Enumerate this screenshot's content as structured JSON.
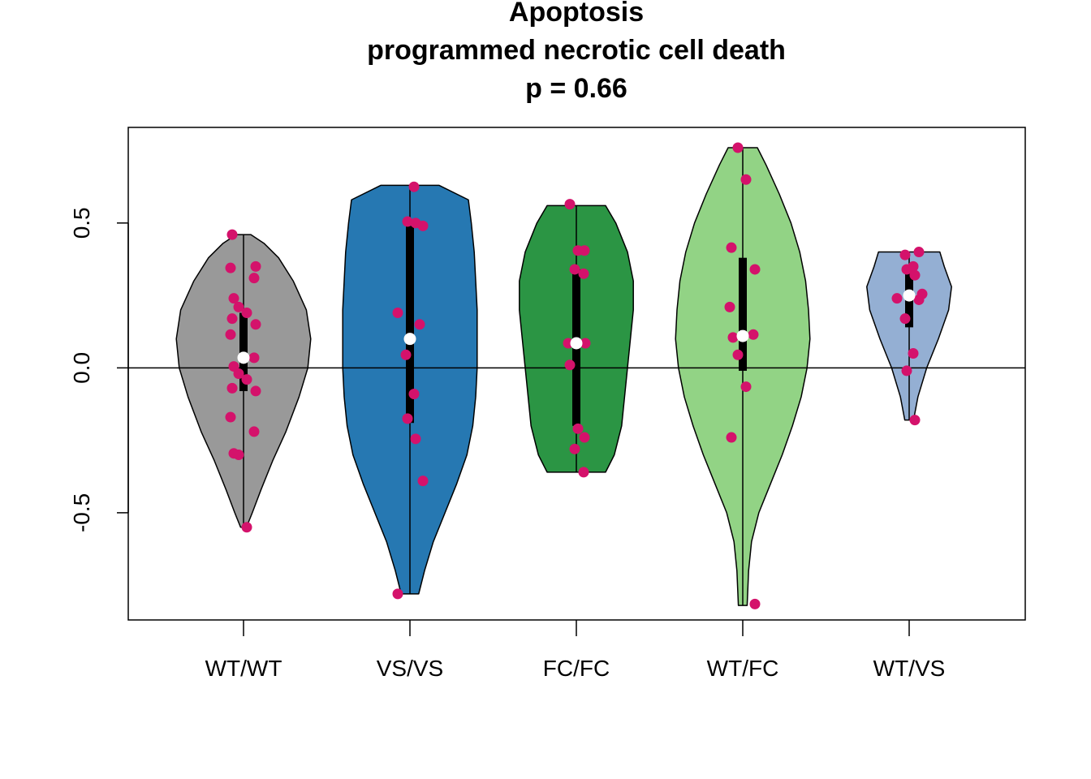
{
  "chart_data": {
    "type": "violin",
    "title_lines": [
      "Apoptosis",
      "programmed necrotic cell death",
      "p = 0.66"
    ],
    "xlabel": "",
    "ylabel": "",
    "ylim": [
      -0.87,
      0.83
    ],
    "yticks": [
      {
        "value": -0.5,
        "label": "-0.5"
      },
      {
        "value": 0.0,
        "label": "0.0"
      },
      {
        "value": 0.5,
        "label": "0.5"
      }
    ],
    "reference_line": 0,
    "point_color": "#d4126b",
    "median_color": "#ffffff",
    "groups": [
      {
        "category": "WT/WT",
        "fill": "#999999",
        "min": -0.55,
        "max": 0.46,
        "q1": -0.08,
        "q3": 0.19,
        "median": 0.035,
        "density": [
          [
            -0.55,
            0.02
          ],
          [
            -0.5,
            0.06
          ],
          [
            -0.42,
            0.12
          ],
          [
            -0.32,
            0.2
          ],
          [
            -0.22,
            0.29
          ],
          [
            -0.1,
            0.38
          ],
          [
            0.0,
            0.44
          ],
          [
            0.1,
            0.46
          ],
          [
            0.2,
            0.43
          ],
          [
            0.3,
            0.34
          ],
          [
            0.38,
            0.24
          ],
          [
            0.43,
            0.14
          ],
          [
            0.46,
            0.05
          ]
        ],
        "points": [
          0.46,
          0.35,
          0.345,
          0.31,
          0.24,
          0.21,
          0.19,
          0.17,
          0.15,
          0.115,
          0.035,
          0.005,
          -0.02,
          -0.04,
          -0.07,
          -0.08,
          -0.17,
          -0.22,
          -0.295,
          -0.3,
          -0.55
        ]
      },
      {
        "category": "VS/VS",
        "fill": "#2678b2",
        "min": -0.78,
        "max": 0.63,
        "q1": -0.19,
        "q3": 0.49,
        "median": 0.1,
        "density": [
          [
            -0.78,
            0.06
          ],
          [
            -0.7,
            0.1
          ],
          [
            -0.6,
            0.16
          ],
          [
            -0.5,
            0.24
          ],
          [
            -0.4,
            0.32
          ],
          [
            -0.3,
            0.39
          ],
          [
            -0.2,
            0.43
          ],
          [
            -0.1,
            0.45
          ],
          [
            0.0,
            0.46
          ],
          [
            0.1,
            0.46
          ],
          [
            0.2,
            0.46
          ],
          [
            0.3,
            0.45
          ],
          [
            0.4,
            0.44
          ],
          [
            0.5,
            0.42
          ],
          [
            0.58,
            0.4
          ],
          [
            0.63,
            0.2
          ]
        ],
        "points": [
          0.625,
          0.505,
          0.5,
          0.49,
          0.19,
          0.15,
          0.045,
          -0.09,
          -0.175,
          -0.245,
          -0.39,
          -0.78
        ]
      },
      {
        "category": "FC/FC",
        "fill": "#2b9544",
        "min": -0.36,
        "max": 0.56,
        "q1": -0.2,
        "q3": 0.34,
        "median": 0.085,
        "density": [
          [
            -0.36,
            0.2
          ],
          [
            -0.3,
            0.26
          ],
          [
            -0.2,
            0.31
          ],
          [
            -0.1,
            0.33
          ],
          [
            0.0,
            0.35
          ],
          [
            0.1,
            0.37
          ],
          [
            0.2,
            0.39
          ],
          [
            0.3,
            0.39
          ],
          [
            0.4,
            0.35
          ],
          [
            0.5,
            0.27
          ],
          [
            0.56,
            0.2
          ]
        ],
        "points": [
          0.565,
          0.405,
          0.405,
          0.34,
          0.325,
          0.085,
          0.085,
          0.01,
          -0.21,
          -0.24,
          -0.28,
          -0.36
        ]
      },
      {
        "category": "WT/FC",
        "fill": "#92d385",
        "min": -0.82,
        "max": 0.76,
        "q1": -0.01,
        "q3": 0.38,
        "median": 0.11,
        "density": [
          [
            -0.82,
            0.03
          ],
          [
            -0.7,
            0.04
          ],
          [
            -0.6,
            0.06
          ],
          [
            -0.5,
            0.11
          ],
          [
            -0.4,
            0.19
          ],
          [
            -0.3,
            0.27
          ],
          [
            -0.2,
            0.34
          ],
          [
            -0.1,
            0.4
          ],
          [
            0.0,
            0.44
          ],
          [
            0.1,
            0.46
          ],
          [
            0.2,
            0.45
          ],
          [
            0.3,
            0.43
          ],
          [
            0.4,
            0.39
          ],
          [
            0.5,
            0.33
          ],
          [
            0.6,
            0.25
          ],
          [
            0.7,
            0.16
          ],
          [
            0.76,
            0.1
          ]
        ],
        "points": [
          0.76,
          0.65,
          0.415,
          0.34,
          0.21,
          0.115,
          0.105,
          0.045,
          -0.065,
          -0.24,
          -0.815
        ]
      },
      {
        "category": "WT/VS",
        "fill": "#94afd3",
        "min": -0.18,
        "max": 0.4,
        "q1": 0.14,
        "q3": 0.34,
        "median": 0.25,
        "density": [
          [
            -0.18,
            0.03
          ],
          [
            -0.1,
            0.06
          ],
          [
            0.0,
            0.12
          ],
          [
            0.1,
            0.2
          ],
          [
            0.2,
            0.27
          ],
          [
            0.28,
            0.29
          ],
          [
            0.35,
            0.24
          ],
          [
            0.4,
            0.21
          ]
        ],
        "points": [
          0.4,
          0.39,
          0.35,
          0.34,
          0.32,
          0.255,
          0.24,
          0.235,
          0.17,
          0.05,
          -0.01,
          -0.18
        ]
      }
    ]
  }
}
